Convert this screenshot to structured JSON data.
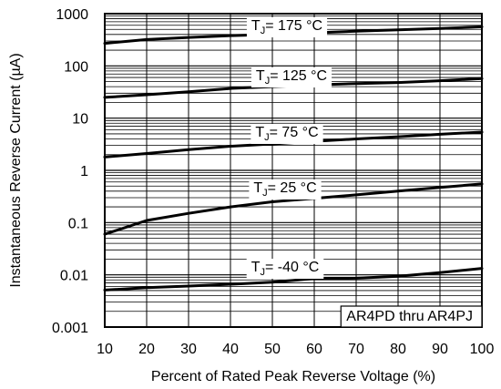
{
  "chart_data": {
    "type": "line",
    "xlabel": "Percent of Rated Peak Reverse Voltage (%)",
    "ylabel": "Instantaneous Reverse Current (µA)",
    "xlim": [
      10,
      100
    ],
    "ylim": [
      0.001,
      1000
    ],
    "yscale": "log",
    "grid": true,
    "x_ticks": [
      10,
      20,
      30,
      40,
      50,
      60,
      70,
      80,
      90,
      100
    ],
    "x_tick_labels": [
      "10",
      "20",
      "30",
      "40",
      "50",
      "60",
      "70",
      "80",
      "90",
      "100"
    ],
    "y_ticks": [
      0.001,
      0.01,
      0.1,
      1,
      10,
      100,
      1000
    ],
    "y_tick_labels": [
      "0.001",
      "0.01",
      "0.1",
      "1",
      "10",
      "100",
      "1000"
    ],
    "x": [
      10,
      20,
      30,
      40,
      50,
      60,
      70,
      80,
      90,
      100
    ],
    "series": [
      {
        "name": "TJ = 175 °C",
        "label_main": "T",
        "label_sub": "J",
        "label_rest": "= 175 °C",
        "values": [
          270,
          320,
          350,
          380,
          400,
          430,
          460,
          490,
          520,
          560
        ]
      },
      {
        "name": "TJ = 125 °C",
        "label_main": "T",
        "label_sub": "J",
        "label_rest": "= 125 °C",
        "values": [
          25,
          28,
          32,
          37,
          40,
          43,
          46,
          48,
          52,
          57
        ]
      },
      {
        "name": "TJ = 75 °C",
        "label_main": "T",
        "label_sub": "J",
        "label_rest": "= 75 °C",
        "values": [
          1.8,
          2.1,
          2.5,
          2.9,
          3.2,
          3.6,
          4.0,
          4.4,
          4.9,
          5.4
        ]
      },
      {
        "name": "TJ = 25 °C",
        "label_main": "T",
        "label_sub": "J",
        "label_rest": "= 25 °C",
        "values": [
          0.06,
          0.11,
          0.15,
          0.2,
          0.25,
          0.29,
          0.34,
          0.4,
          0.47,
          0.55
        ]
      },
      {
        "name": "TJ = -40 °C",
        "label_main": "T",
        "label_sub": "J",
        "label_rest": "= -40 °C",
        "values": [
          0.0051,
          0.0057,
          0.0061,
          0.0066,
          0.0072,
          0.0085,
          0.0086,
          0.0094,
          0.011,
          0.0133
        ]
      }
    ],
    "annotation": "AR4PD thru AR4PJ",
    "colors": {
      "line": "#000000",
      "grid": "#000000",
      "background": "#ffffff"
    }
  }
}
